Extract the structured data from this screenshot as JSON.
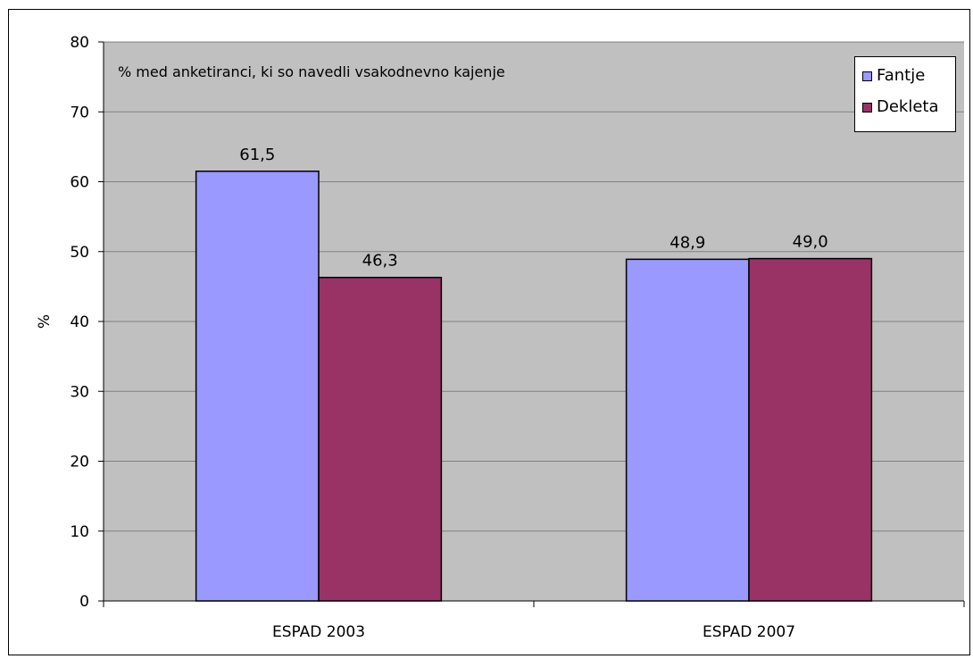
{
  "chart_data": {
    "type": "bar",
    "categories": [
      "ESPAD 2003",
      "ESPAD 2007"
    ],
    "series": [
      {
        "name": "Fantje",
        "values": [
          61.5,
          48.9
        ],
        "labels": [
          "61,5",
          "48,9"
        ],
        "color": "#9999FF"
      },
      {
        "name": "Dekleta",
        "values": [
          46.3,
          49.0
        ],
        "labels": [
          "46,3",
          "49,0"
        ],
        "color": "#993366"
      }
    ],
    "annotation": "% med anketiranci, ki so navedli vsakodnevno kajenje",
    "ylabel": "%",
    "ylim": [
      0,
      80
    ],
    "yticks": [
      0,
      10,
      20,
      30,
      40,
      50,
      60,
      70,
      80
    ],
    "grid": true,
    "legend_position": "top-right",
    "plot_background": "#C0C0C0"
  }
}
